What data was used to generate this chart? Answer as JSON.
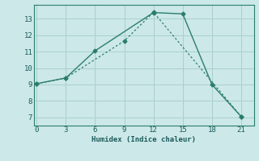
{
  "xlabel": "Humidex (Indice chaleur)",
  "line1_x": [
    0,
    3,
    6,
    12,
    15,
    18,
    21
  ],
  "line1_y": [
    9.05,
    9.4,
    11.05,
    13.38,
    13.3,
    9.0,
    7.05
  ],
  "line2_x": [
    0,
    3,
    9,
    12,
    21
  ],
  "line2_y": [
    9.05,
    9.4,
    11.65,
    13.4,
    7.05
  ],
  "line_color": "#2a7d6e",
  "bg_color": "#cce8e8",
  "grid_color": "#aacfcf",
  "xlim": [
    -0.3,
    22.3
  ],
  "ylim": [
    6.5,
    13.85
  ],
  "xticks": [
    0,
    3,
    6,
    9,
    12,
    15,
    18,
    21
  ],
  "yticks": [
    7,
    8,
    9,
    10,
    11,
    12,
    13
  ]
}
